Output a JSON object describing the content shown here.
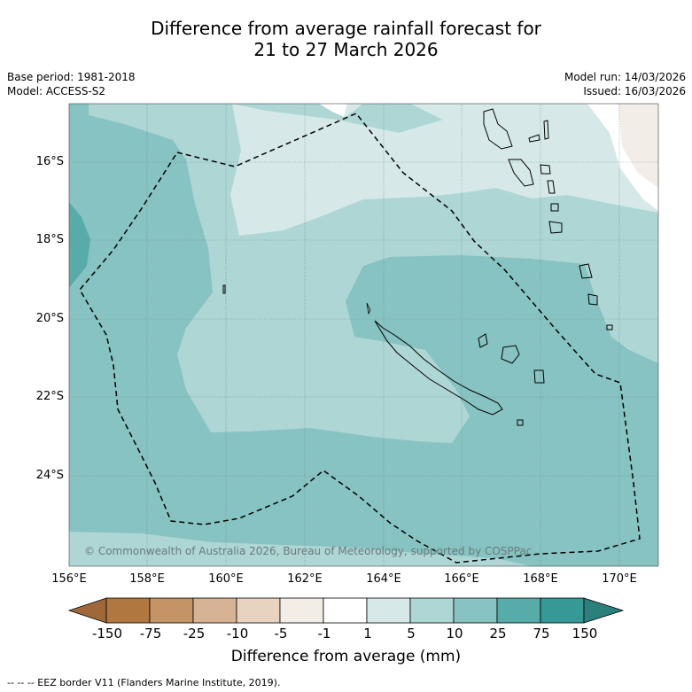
{
  "title": {
    "line1": "Difference from average rainfall forecast for",
    "line2": "21 to 27 March 2026"
  },
  "meta": {
    "base_period": "Base period: 1981-2018",
    "model": "Model: ACCESS-S2",
    "model_run": "Model run: 14/03/2026",
    "issued": "Issued: 16/03/2026"
  },
  "map": {
    "latitude_labels": [
      "16°S",
      "18°S",
      "20°S",
      "22°S",
      "24°S"
    ],
    "longitude_labels": [
      "156°E",
      "158°E",
      "160°E",
      "162°E",
      "164°E",
      "166°E",
      "168°E",
      "170°E"
    ],
    "copyright": "© Commonwealth of Australia 2026, Bureau of Meteorology, supported by COSPPac"
  },
  "colorbar": {
    "title": "Difference from average (mm)",
    "tick_labels": [
      "-150",
      "-75",
      "-25",
      "-10",
      "-5",
      "-1",
      "1",
      "5",
      "10",
      "25",
      "75",
      "150"
    ],
    "colors": [
      "#a0673a",
      "#b07840",
      "#c49466",
      "#d6b394",
      "#e8d3c0",
      "#f3ede8",
      "#ffffff",
      "#d6e9e8",
      "#aed6d5",
      "#87c3c2",
      "#57acaa",
      "#359996",
      "#2b7f7c"
    ]
  },
  "footnote": "--  --  -- EEZ border V11 (Flanders Marine Institute, 2019)."
}
